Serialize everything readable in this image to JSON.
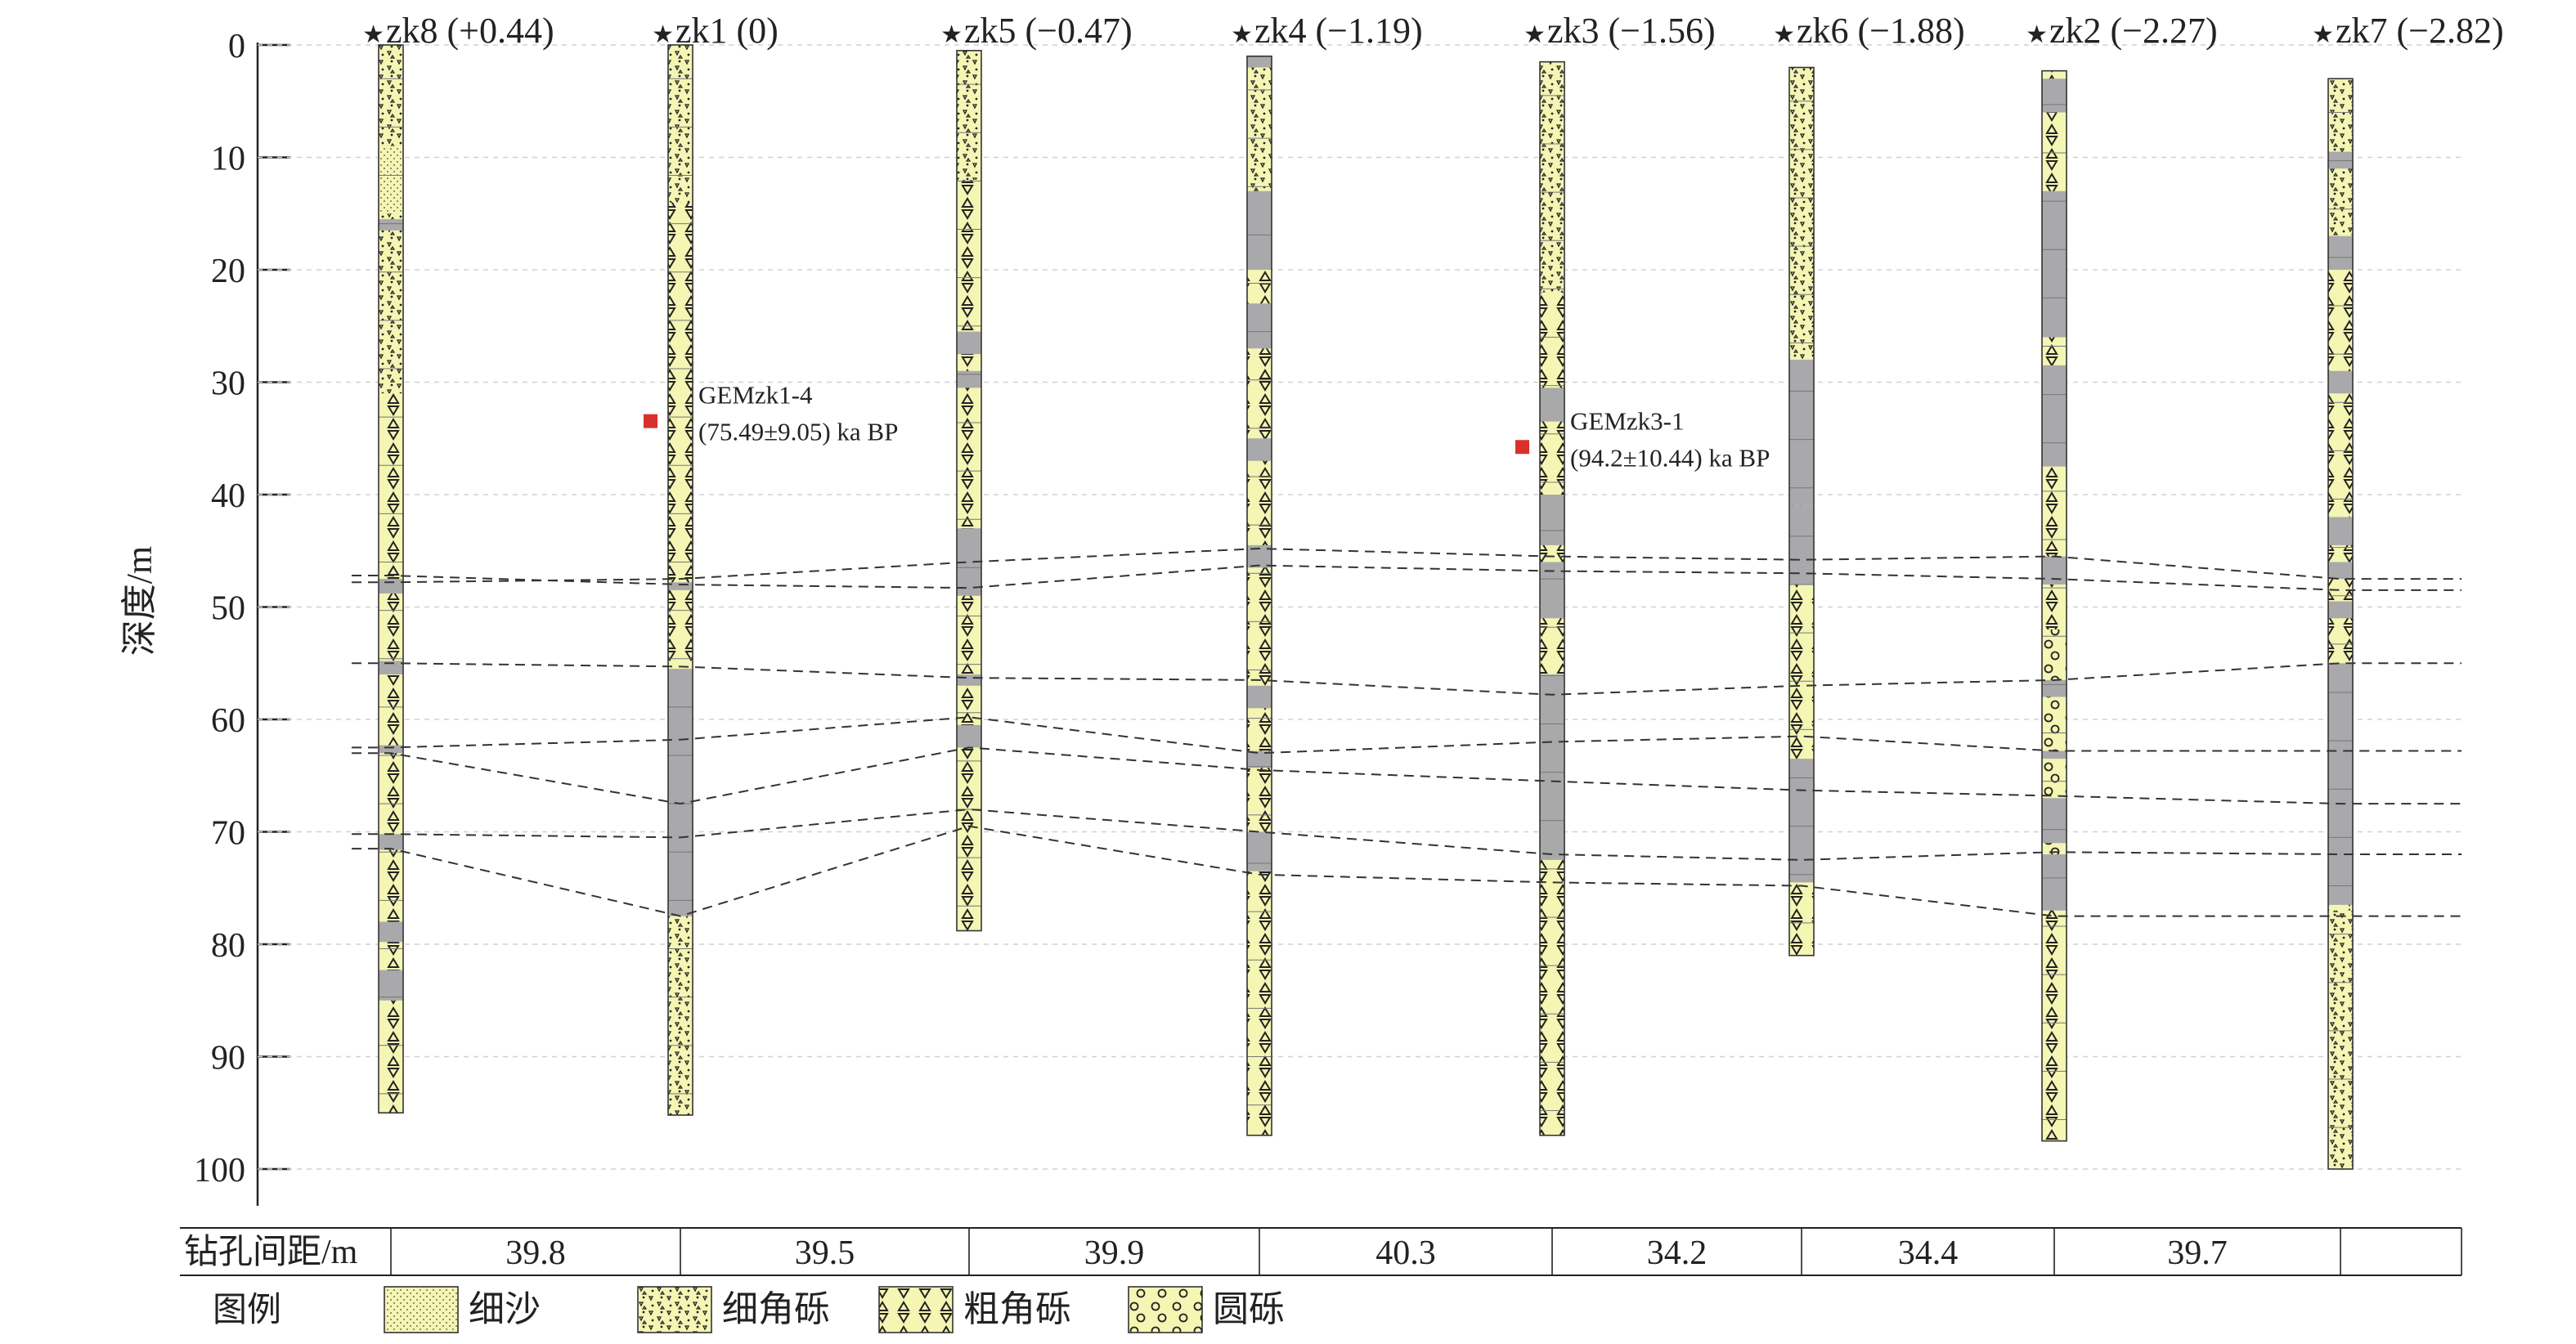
{
  "axis": {
    "ylabel": "深度/m",
    "ticks": [
      0,
      10,
      20,
      30,
      40,
      50,
      60,
      70,
      80,
      90,
      100
    ],
    "ylim": [
      0,
      100
    ]
  },
  "colors": {
    "yellow": "#f5f5b4",
    "gray": "#a9a9ab",
    "sample": "#d8312c",
    "dash": "#333333"
  },
  "boreholes": [
    {
      "label": "zk8 (+0.44)",
      "top": 0.0,
      "bottom": 95.0,
      "gray": [
        [
          15.5,
          16.5
        ],
        [
          47.5,
          48.8
        ],
        [
          54.8,
          56.0
        ],
        [
          62.3,
          63.0
        ],
        [
          70.2,
          71.6
        ],
        [
          78.0,
          79.8
        ],
        [
          82.3,
          85.0
        ]
      ],
      "pattern": [
        [
          0,
          9,
          "fine"
        ],
        [
          9,
          15,
          "sand"
        ],
        [
          15,
          31,
          "fine"
        ],
        [
          31,
          95,
          "coarse"
        ]
      ]
    },
    {
      "label": "zk1 (0)",
      "top": 0.0,
      "bottom": 95.2,
      "gray": [
        [
          47.8,
          48.5
        ],
        [
          55.5,
          77.5
        ]
      ],
      "pattern": [
        [
          0,
          14,
          "fine"
        ],
        [
          14,
          55,
          "coarse"
        ],
        [
          77.5,
          95.2,
          "fine"
        ]
      ]
    },
    {
      "label": "zk5 (−0.47)",
      "top": 0.5,
      "bottom": 78.8,
      "gray": [
        [
          25.5,
          27.5
        ],
        [
          29.0,
          30.5
        ],
        [
          43.0,
          49.0
        ],
        [
          56.0,
          57.0
        ],
        [
          60.5,
          62.5
        ]
      ],
      "pattern": [
        [
          0.5,
          12,
          "fine"
        ],
        [
          12,
          78.8,
          "coarse"
        ]
      ]
    },
    {
      "label": "zk4 (−1.19)",
      "top": 1.0,
      "bottom": 97.0,
      "gray": [
        [
          1.0,
          2.0
        ],
        [
          13.0,
          20.0
        ],
        [
          23.0,
          27.0
        ],
        [
          35.0,
          37.0
        ],
        [
          44.5,
          46.5
        ],
        [
          57.0,
          59.0
        ],
        [
          62.8,
          64.3
        ],
        [
          70.0,
          73.5
        ]
      ],
      "pattern": [
        [
          1,
          20,
          "fine"
        ],
        [
          20,
          97,
          "coarse"
        ]
      ]
    },
    {
      "label": "zk3 (−1.56)",
      "top": 1.5,
      "bottom": 97.0,
      "gray": [
        [
          30.5,
          33.5
        ],
        [
          40.0,
          44.5
        ],
        [
          46.0,
          51.0
        ],
        [
          56.0,
          72.5
        ]
      ],
      "pattern": [
        [
          1.5,
          22,
          "fine"
        ],
        [
          22,
          97,
          "coarse"
        ]
      ]
    },
    {
      "label": "zk6 (−1.88)",
      "top": 2.0,
      "bottom": 81.0,
      "gray": [
        [
          28.0,
          41.0
        ],
        [
          41.0,
          48.0
        ],
        [
          63.5,
          74.5
        ]
      ],
      "pattern": [
        [
          2,
          28,
          "fine"
        ],
        [
          28,
          81,
          "coarse"
        ]
      ]
    },
    {
      "label": "zk2 (−2.27)",
      "top": 2.3,
      "bottom": 97.5,
      "gray": [
        [
          3.0,
          6.0
        ],
        [
          13.0,
          26.0
        ],
        [
          28.5,
          37.5
        ],
        [
          45.5,
          48.0
        ],
        [
          56.5,
          58.0
        ],
        [
          62.8,
          63.5
        ],
        [
          67.0,
          71.0
        ],
        [
          72.0,
          77.0
        ]
      ],
      "pattern": [
        [
          2.3,
          28,
          "coarse"
        ],
        [
          28,
          52,
          "coarse"
        ],
        [
          52,
          72,
          "round"
        ],
        [
          72,
          97.5,
          "coarse"
        ]
      ]
    },
    {
      "label": "zk7 (−2.82)",
      "top": 3.0,
      "bottom": 100.0,
      "gray": [
        [
          9.5,
          11.0
        ],
        [
          17.0,
          20.0
        ],
        [
          29.0,
          31.0
        ],
        [
          42.0,
          44.5
        ],
        [
          46.0,
          47.5
        ],
        [
          49.5,
          51.0
        ],
        [
          55.0,
          76.5
        ]
      ],
      "pattern": [
        [
          3,
          20,
          "fine"
        ],
        [
          20,
          55,
          "coarse"
        ],
        [
          55,
          77,
          "coarse"
        ],
        [
          77,
          100,
          "fine"
        ]
      ]
    }
  ],
  "correlation_lines": [
    {
      "y": [
        47.2,
        48.0,
        48.3,
        46.3,
        46.8,
        47.0,
        47.5,
        48.5
      ]
    },
    {
      "y": [
        47.8,
        47.5,
        46.0,
        44.8,
        45.5,
        45.8,
        45.5,
        47.5
      ]
    },
    {
      "y": [
        55.0,
        55.3,
        56.3,
        56.5,
        57.8,
        57.0,
        56.5,
        55.0
      ]
    },
    {
      "y": [
        62.5,
        61.8,
        59.8,
        63.0,
        62.0,
        61.5,
        62.8,
        62.8
      ]
    },
    {
      "y": [
        63.0,
        67.5,
        62.5,
        64.5,
        65.5,
        66.3,
        66.8,
        67.5
      ]
    },
    {
      "y": [
        70.2,
        70.5,
        68.0,
        70.0,
        72.0,
        72.5,
        71.8,
        72.0
      ]
    },
    {
      "y": [
        71.5,
        77.5,
        69.5,
        73.8,
        74.5,
        74.8,
        77.5,
        77.5
      ]
    }
  ],
  "samples": [
    {
      "borehole": 1,
      "depth": 33.5,
      "name": "GEMzk1-4",
      "age": "(75.49±9.05) ka BP"
    },
    {
      "borehole": 4,
      "depth": 35.8,
      "name": "GEMzk3-1",
      "age": "(94.2±10.44) ka BP"
    }
  ],
  "spacing": {
    "label": "钻孔间距/m",
    "values": [
      "39.8",
      "39.5",
      "39.9",
      "40.3",
      "34.2",
      "34.4",
      "39.7"
    ]
  },
  "legend": {
    "title": "图例",
    "items": [
      {
        "name": "细沙",
        "pattern": "sand"
      },
      {
        "name": "细角砾",
        "pattern": "fine"
      },
      {
        "name": "粗角砾",
        "pattern": "coarse"
      },
      {
        "name": "圆砾",
        "pattern": "round"
      }
    ]
  }
}
